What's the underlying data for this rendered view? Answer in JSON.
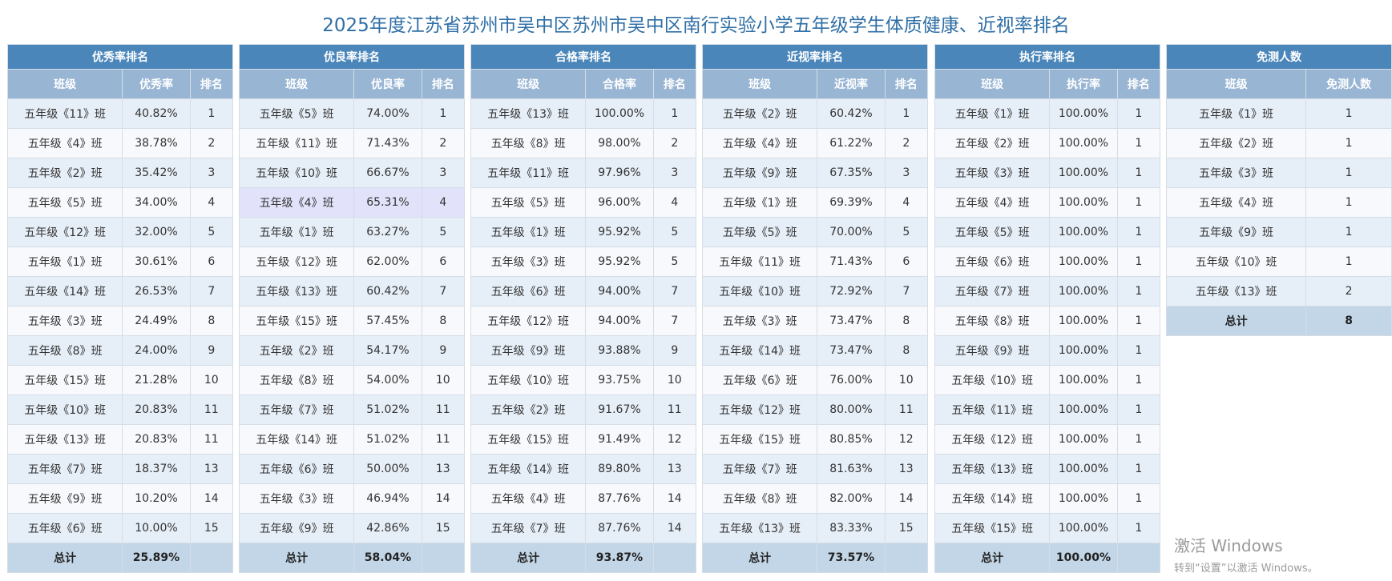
{
  "title": "2025年度江苏省苏州市吴中区苏州市吴中区南行实验小学五年级学生体质健康、近视率排名",
  "tables": [
    {
      "title": "优秀率排名",
      "headers": [
        "班级",
        "优秀率",
        "排名"
      ],
      "rows": [
        [
          "五年级《11》班",
          "40.82%",
          "1"
        ],
        [
          "五年级《4》班",
          "38.78%",
          "2"
        ],
        [
          "五年级《2》班",
          "35.42%",
          "3"
        ],
        [
          "五年级《5》班",
          "34.00%",
          "4"
        ],
        [
          "五年级《12》班",
          "32.00%",
          "5"
        ],
        [
          "五年级《1》班",
          "30.61%",
          "6"
        ],
        [
          "五年级《14》班",
          "26.53%",
          "7"
        ],
        [
          "五年级《3》班",
          "24.49%",
          "8"
        ],
        [
          "五年级《8》班",
          "24.00%",
          "9"
        ],
        [
          "五年级《15》班",
          "21.28%",
          "10"
        ],
        [
          "五年级《10》班",
          "20.83%",
          "11"
        ],
        [
          "五年级《13》班",
          "20.83%",
          "11"
        ],
        [
          "五年级《7》班",
          "18.37%",
          "13"
        ],
        [
          "五年级《9》班",
          "10.20%",
          "14"
        ],
        [
          "五年级《6》班",
          "10.00%",
          "15"
        ]
      ],
      "total": [
        "总计",
        "25.89%"
      ]
    },
    {
      "title": "优良率排名",
      "headers": [
        "班级",
        "优良率",
        "排名"
      ],
      "highlighted_row": 3,
      "rows": [
        [
          "五年级《5》班",
          "74.00%",
          "1"
        ],
        [
          "五年级《11》班",
          "71.43%",
          "2"
        ],
        [
          "五年级《10》班",
          "66.67%",
          "3"
        ],
        [
          "五年级《4》班",
          "65.31%",
          "4"
        ],
        [
          "五年级《1》班",
          "63.27%",
          "5"
        ],
        [
          "五年级《12》班",
          "62.00%",
          "6"
        ],
        [
          "五年级《13》班",
          "60.42%",
          "7"
        ],
        [
          "五年级《15》班",
          "57.45%",
          "8"
        ],
        [
          "五年级《2》班",
          "54.17%",
          "9"
        ],
        [
          "五年级《8》班",
          "54.00%",
          "10"
        ],
        [
          "五年级《7》班",
          "51.02%",
          "11"
        ],
        [
          "五年级《14》班",
          "51.02%",
          "11"
        ],
        [
          "五年级《6》班",
          "50.00%",
          "13"
        ],
        [
          "五年级《3》班",
          "46.94%",
          "14"
        ],
        [
          "五年级《9》班",
          "42.86%",
          "15"
        ]
      ],
      "total": [
        "总计",
        "58.04%"
      ]
    },
    {
      "title": "合格率排名",
      "headers": [
        "班级",
        "合格率",
        "排名"
      ],
      "rows": [
        [
          "五年级《13》班",
          "100.00%",
          "1"
        ],
        [
          "五年级《8》班",
          "98.00%",
          "2"
        ],
        [
          "五年级《11》班",
          "97.96%",
          "3"
        ],
        [
          "五年级《5》班",
          "96.00%",
          "4"
        ],
        [
          "五年级《1》班",
          "95.92%",
          "5"
        ],
        [
          "五年级《3》班",
          "95.92%",
          "5"
        ],
        [
          "五年级《6》班",
          "94.00%",
          "7"
        ],
        [
          "五年级《12》班",
          "94.00%",
          "7"
        ],
        [
          "五年级《9》班",
          "93.88%",
          "9"
        ],
        [
          "五年级《10》班",
          "93.75%",
          "10"
        ],
        [
          "五年级《2》班",
          "91.67%",
          "11"
        ],
        [
          "五年级《15》班",
          "91.49%",
          "12"
        ],
        [
          "五年级《14》班",
          "89.80%",
          "13"
        ],
        [
          "五年级《4》班",
          "87.76%",
          "14"
        ],
        [
          "五年级《7》班",
          "87.76%",
          "14"
        ]
      ],
      "total": [
        "总计",
        "93.87%"
      ]
    },
    {
      "title": "近视率排名",
      "headers": [
        "班级",
        "近视率",
        "排名"
      ],
      "rows": [
        [
          "五年级《2》班",
          "60.42%",
          "1"
        ],
        [
          "五年级《4》班",
          "61.22%",
          "2"
        ],
        [
          "五年级《9》班",
          "67.35%",
          "3"
        ],
        [
          "五年级《1》班",
          "69.39%",
          "4"
        ],
        [
          "五年级《5》班",
          "70.00%",
          "5"
        ],
        [
          "五年级《11》班",
          "71.43%",
          "6"
        ],
        [
          "五年级《10》班",
          "72.92%",
          "7"
        ],
        [
          "五年级《3》班",
          "73.47%",
          "8"
        ],
        [
          "五年级《14》班",
          "73.47%",
          "8"
        ],
        [
          "五年级《6》班",
          "76.00%",
          "10"
        ],
        [
          "五年级《12》班",
          "80.00%",
          "11"
        ],
        [
          "五年级《15》班",
          "80.85%",
          "12"
        ],
        [
          "五年级《7》班",
          "81.63%",
          "13"
        ],
        [
          "五年级《8》班",
          "82.00%",
          "14"
        ],
        [
          "五年级《13》班",
          "83.33%",
          "15"
        ]
      ],
      "total": [
        "总计",
        "73.57%"
      ]
    },
    {
      "title": "执行率排名",
      "headers": [
        "班级",
        "执行率",
        "排名"
      ],
      "rows": [
        [
          "五年级《1》班",
          "100.00%",
          "1"
        ],
        [
          "五年级《2》班",
          "100.00%",
          "1"
        ],
        [
          "五年级《3》班",
          "100.00%",
          "1"
        ],
        [
          "五年级《4》班",
          "100.00%",
          "1"
        ],
        [
          "五年级《5》班",
          "100.00%",
          "1"
        ],
        [
          "五年级《6》班",
          "100.00%",
          "1"
        ],
        [
          "五年级《7》班",
          "100.00%",
          "1"
        ],
        [
          "五年级《8》班",
          "100.00%",
          "1"
        ],
        [
          "五年级《9》班",
          "100.00%",
          "1"
        ],
        [
          "五年级《10》班",
          "100.00%",
          "1"
        ],
        [
          "五年级《11》班",
          "100.00%",
          "1"
        ],
        [
          "五年级《12》班",
          "100.00%",
          "1"
        ],
        [
          "五年级《13》班",
          "100.00%",
          "1"
        ],
        [
          "五年级《14》班",
          "100.00%",
          "1"
        ],
        [
          "五年级《15》班",
          "100.00%",
          "1"
        ]
      ],
      "total": [
        "总计",
        "100.00%"
      ]
    },
    {
      "title": "免测人数",
      "headers": [
        "班级",
        "免测人数"
      ],
      "rows": [
        [
          "五年级《1》班",
          "1"
        ],
        [
          "五年级《2》班",
          "1"
        ],
        [
          "五年级《3》班",
          "1"
        ],
        [
          "五年级《4》班",
          "1"
        ],
        [
          "五年级《9》班",
          "1"
        ],
        [
          "五年级《10》班",
          "1"
        ],
        [
          "五年级《13》班",
          "2"
        ]
      ],
      "total": [
        "总计",
        "8"
      ]
    }
  ],
  "watermark": {
    "line1": "激活 Windows",
    "line2": "转到“设置”以激活 Windows。"
  }
}
